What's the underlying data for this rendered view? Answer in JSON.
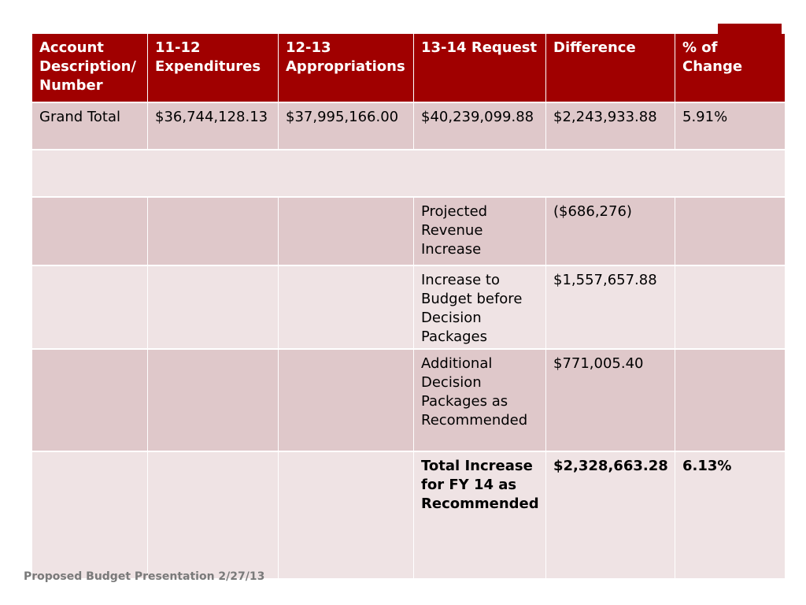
{
  "colors": {
    "header_bg": "#a00000",
    "row_dark": "#dfc8ca",
    "row_light": "#efe3e4",
    "accent": "#a00000"
  },
  "table": {
    "headers": [
      "Account Description/ Number",
      "11-12 Expenditures",
      "12-13 Appropriations",
      "13-14 Request",
      "Difference",
      "% of Change"
    ],
    "grand_total": {
      "label": "Grand Total",
      "expenditures": "$36,744,128.13",
      "appropriations": "$37,995,166.00",
      "request": "$40,239,099.88",
      "difference": "$2,243,933.88",
      "percent_change": "5.91%"
    },
    "projected_revenue": {
      "label": "Projected Revenue Increase",
      "difference": "($686,276)"
    },
    "increase_before_packages": {
      "label": "Increase to Budget before Decision Packages",
      "difference": "$1,557,657.88"
    },
    "additional_packages": {
      "label": "Additional Decision Packages as Recommended",
      "difference": "$771,005.40"
    },
    "total_increase": {
      "label": "Total Increase for FY 14 as Recommended",
      "difference": "$2,328,663.28",
      "percent_change": "6.13%"
    }
  },
  "footer": {
    "text": "Proposed Budget Presentation 2/27/13"
  }
}
